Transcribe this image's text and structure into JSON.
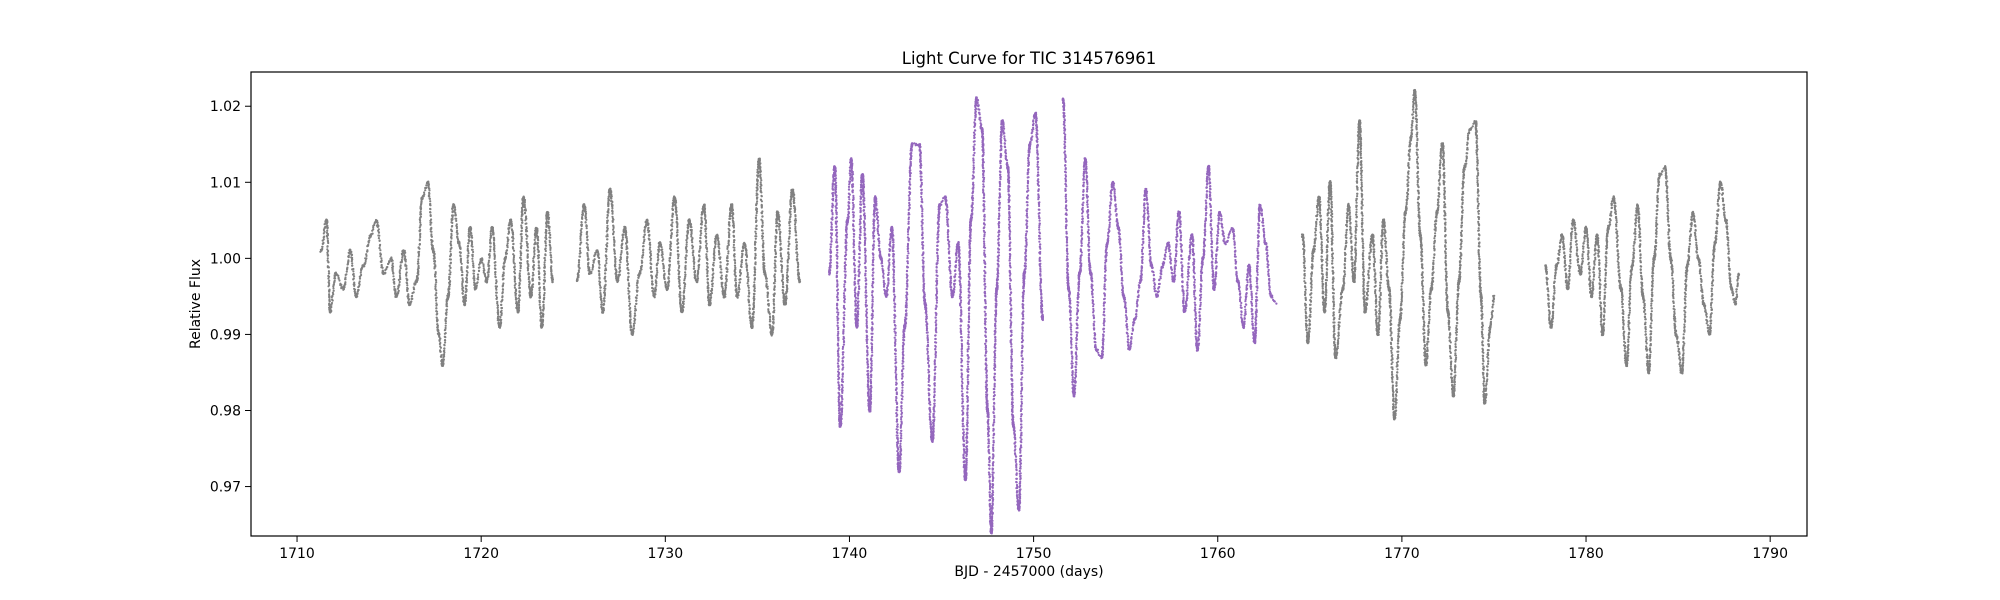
{
  "chart_data": {
    "type": "scatter",
    "title": "Light Curve for TIC 314576961",
    "xlabel": "BJD - 2457000 (days)",
    "ylabel": "Relative Flux",
    "xlim": [
      1707.5,
      1792
    ],
    "ylim": [
      0.9635,
      1.0245
    ],
    "xticks": [
      1710,
      1720,
      1730,
      1740,
      1750,
      1760,
      1770,
      1780,
      1790
    ],
    "yticks": [
      0.97,
      0.98,
      0.99,
      1.0,
      1.01,
      1.02
    ],
    "ytick_labels": [
      "0.97",
      "0.98",
      "0.99",
      "1.00",
      "1.01",
      "1.02"
    ],
    "grid": false,
    "legend": "none",
    "series": [
      {
        "color": "#808080",
        "segments": [
          {
            "x_start": 1711.3,
            "x_end": 1723.9,
            "points": [
              [
                1711.3,
                1.001
              ],
              [
                1711.6,
                1.005
              ],
              [
                1711.8,
                0.993
              ],
              [
                1712.1,
                0.998
              ],
              [
                1712.5,
                0.996
              ],
              [
                1712.9,
                1.001
              ],
              [
                1713.2,
                0.995
              ],
              [
                1713.6,
                0.999
              ],
              [
                1714.0,
                1.003
              ],
              [
                1714.3,
                1.005
              ],
              [
                1714.7,
                0.998
              ],
              [
                1715.1,
                1.0
              ],
              [
                1715.4,
                0.995
              ],
              [
                1715.8,
                1.001
              ],
              [
                1716.1,
                0.994
              ],
              [
                1716.5,
                0.997
              ],
              [
                1716.8,
                1.008
              ],
              [
                1717.1,
                1.01
              ],
              [
                1717.4,
                1.001
              ],
              [
                1717.7,
                0.99
              ],
              [
                1717.9,
                0.986
              ],
              [
                1718.2,
                0.995
              ],
              [
                1718.5,
                1.007
              ],
              [
                1718.8,
                1.002
              ],
              [
                1719.1,
                0.994
              ],
              [
                1719.4,
                1.004
              ],
              [
                1719.7,
                0.996
              ],
              [
                1720.0,
                1.0
              ],
              [
                1720.3,
                0.997
              ],
              [
                1720.6,
                1.004
              ],
              [
                1721.0,
                0.991
              ],
              [
                1721.3,
                1.0
              ],
              [
                1721.6,
                1.005
              ],
              [
                1722.0,
                0.993
              ],
              [
                1722.3,
                1.008
              ],
              [
                1722.7,
                0.995
              ],
              [
                1723.0,
                1.004
              ],
              [
                1723.3,
                0.991
              ],
              [
                1723.6,
                1.006
              ],
              [
                1723.9,
                0.997
              ]
            ]
          },
          {
            "x_start": 1725.2,
            "x_end": 1737.3,
            "points": [
              [
                1725.2,
                0.997
              ],
              [
                1725.6,
                1.007
              ],
              [
                1725.9,
                0.998
              ],
              [
                1726.3,
                1.001
              ],
              [
                1726.6,
                0.993
              ],
              [
                1727.0,
                1.009
              ],
              [
                1727.4,
                0.997
              ],
              [
                1727.8,
                1.004
              ],
              [
                1728.2,
                0.99
              ],
              [
                1728.6,
                0.998
              ],
              [
                1729.0,
                1.005
              ],
              [
                1729.4,
                0.995
              ],
              [
                1729.7,
                1.002
              ],
              [
                1730.1,
                0.996
              ],
              [
                1730.5,
                1.008
              ],
              [
                1730.9,
                0.993
              ],
              [
                1731.3,
                1.005
              ],
              [
                1731.7,
                0.997
              ],
              [
                1732.1,
                1.007
              ],
              [
                1732.4,
                0.994
              ],
              [
                1732.8,
                1.003
              ],
              [
                1733.2,
                0.995
              ],
              [
                1733.6,
                1.007
              ],
              [
                1733.9,
                0.995
              ],
              [
                1734.3,
                1.002
              ],
              [
                1734.7,
                0.991
              ],
              [
                1735.1,
                1.013
              ],
              [
                1735.4,
                0.998
              ],
              [
                1735.8,
                0.99
              ],
              [
                1736.1,
                1.006
              ],
              [
                1736.5,
                0.994
              ],
              [
                1736.9,
                1.009
              ],
              [
                1737.3,
                0.997
              ]
            ]
          },
          {
            "x_start": 1764.6,
            "x_end": 1775.0,
            "points": [
              [
                1764.6,
                1.003
              ],
              [
                1764.9,
                0.989
              ],
              [
                1765.2,
                1.001
              ],
              [
                1765.5,
                1.008
              ],
              [
                1765.8,
                0.993
              ],
              [
                1766.1,
                1.01
              ],
              [
                1766.4,
                0.987
              ],
              [
                1766.8,
                0.996
              ],
              [
                1767.1,
                1.007
              ],
              [
                1767.4,
                0.997
              ],
              [
                1767.7,
                1.018
              ],
              [
                1768.0,
                0.993
              ],
              [
                1768.4,
                1.003
              ],
              [
                1768.7,
                0.99
              ],
              [
                1769.0,
                1.005
              ],
              [
                1769.3,
                0.996
              ],
              [
                1769.6,
                0.979
              ],
              [
                1769.9,
                0.992
              ],
              [
                1770.2,
                1.006
              ],
              [
                1770.5,
                1.016
              ],
              [
                1770.7,
                1.022
              ],
              [
                1771.0,
                1.003
              ],
              [
                1771.3,
                0.986
              ],
              [
                1771.6,
                0.996
              ],
              [
                1771.9,
                1.006
              ],
              [
                1772.2,
                1.015
              ],
              [
                1772.5,
                0.993
              ],
              [
                1772.8,
                0.982
              ],
              [
                1773.1,
                0.997
              ],
              [
                1773.4,
                1.012
              ],
              [
                1773.7,
                1.017
              ],
              [
                1774.0,
                1.018
              ],
              [
                1774.3,
                0.995
              ],
              [
                1774.5,
                0.981
              ],
              [
                1774.8,
                0.991
              ],
              [
                1775.0,
                0.995
              ]
            ]
          },
          {
            "x_start": 1777.8,
            "x_end": 1788.3,
            "points": [
              [
                1777.8,
                0.999
              ],
              [
                1778.1,
                0.991
              ],
              [
                1778.4,
                0.999
              ],
              [
                1778.7,
                1.003
              ],
              [
                1779.0,
                0.996
              ],
              [
                1779.3,
                1.005
              ],
              [
                1779.7,
                0.998
              ],
              [
                1780.0,
                1.004
              ],
              [
                1780.3,
                0.995
              ],
              [
                1780.6,
                1.003
              ],
              [
                1780.9,
                0.99
              ],
              [
                1781.2,
                1.004
              ],
              [
                1781.5,
                1.008
              ],
              [
                1781.9,
                0.996
              ],
              [
                1782.2,
                0.986
              ],
              [
                1782.5,
                0.999
              ],
              [
                1782.8,
                1.007
              ],
              [
                1783.1,
                0.995
              ],
              [
                1783.4,
                0.985
              ],
              [
                1783.7,
                1.0
              ],
              [
                1784.0,
                1.011
              ],
              [
                1784.3,
                1.012
              ],
              [
                1784.6,
                1.0
              ],
              [
                1784.9,
                0.99
              ],
              [
                1785.2,
                0.985
              ],
              [
                1785.5,
                0.999
              ],
              [
                1785.8,
                1.006
              ],
              [
                1786.1,
                1.0
              ],
              [
                1786.4,
                0.994
              ],
              [
                1786.7,
                0.99
              ],
              [
                1787.0,
                1.002
              ],
              [
                1787.3,
                1.01
              ],
              [
                1787.6,
                1.005
              ],
              [
                1787.9,
                0.996
              ],
              [
                1788.1,
                0.994
              ],
              [
                1788.3,
                0.998
              ]
            ]
          }
        ]
      },
      {
        "color": "#9467bd",
        "segments": [
          {
            "x_start": 1738.9,
            "x_end": 1750.5,
            "points": [
              [
                1738.9,
                0.998
              ],
              [
                1739.2,
                1.012
              ],
              [
                1739.5,
                0.978
              ],
              [
                1739.9,
                1.005
              ],
              [
                1740.1,
                1.013
              ],
              [
                1740.4,
                0.991
              ],
              [
                1740.7,
                1.011
              ],
              [
                1741.1,
                0.98
              ],
              [
                1741.4,
                1.008
              ],
              [
                1741.7,
                1.0
              ],
              [
                1742.0,
                0.995
              ],
              [
                1742.3,
                1.004
              ],
              [
                1742.7,
                0.972
              ],
              [
                1743.0,
                0.991
              ],
              [
                1743.4,
                1.015
              ],
              [
                1743.8,
                1.015
              ],
              [
                1744.1,
                0.994
              ],
              [
                1744.5,
                0.976
              ],
              [
                1744.9,
                1.007
              ],
              [
                1745.2,
                1.008
              ],
              [
                1745.6,
                0.995
              ],
              [
                1745.9,
                1.002
              ],
              [
                1746.3,
                0.971
              ],
              [
                1746.6,
                1.005
              ],
              [
                1746.9,
                1.021
              ],
              [
                1747.2,
                1.017
              ],
              [
                1747.5,
                0.98
              ],
              [
                1747.7,
                0.964
              ],
              [
                1748.0,
                0.996
              ],
              [
                1748.3,
                1.018
              ],
              [
                1748.6,
                1.012
              ],
              [
                1748.9,
                0.978
              ],
              [
                1749.2,
                0.967
              ],
              [
                1749.5,
                0.998
              ],
              [
                1749.8,
                1.015
              ],
              [
                1750.1,
                1.019
              ],
              [
                1750.5,
                0.992
              ]
            ]
          },
          {
            "x_start": 1751.6,
            "x_end": 1763.2,
            "points": [
              [
                1751.6,
                1.021
              ],
              [
                1751.9,
                0.996
              ],
              [
                1752.2,
                0.982
              ],
              [
                1752.5,
                0.998
              ],
              [
                1752.8,
                1.013
              ],
              [
                1753.1,
                0.998
              ],
              [
                1753.4,
                0.988
              ],
              [
                1753.7,
                0.987
              ],
              [
                1754.0,
                1.002
              ],
              [
                1754.3,
                1.01
              ],
              [
                1754.6,
                1.004
              ],
              [
                1754.9,
                0.995
              ],
              [
                1755.2,
                0.988
              ],
              [
                1755.5,
                0.992
              ],
              [
                1755.8,
                0.997
              ],
              [
                1756.1,
                1.009
              ],
              [
                1756.4,
                0.999
              ],
              [
                1756.7,
                0.995
              ],
              [
                1757.0,
                0.999
              ],
              [
                1757.3,
                1.002
              ],
              [
                1757.6,
                0.997
              ],
              [
                1757.9,
                1.006
              ],
              [
                1758.2,
                0.993
              ],
              [
                1758.6,
                1.003
              ],
              [
                1758.9,
                0.988
              ],
              [
                1759.2,
                1.0
              ],
              [
                1759.5,
                1.012
              ],
              [
                1759.8,
                0.996
              ],
              [
                1760.1,
                1.006
              ],
              [
                1760.4,
                1.002
              ],
              [
                1760.8,
                1.004
              ],
              [
                1761.1,
                0.997
              ],
              [
                1761.4,
                0.991
              ],
              [
                1761.7,
                0.999
              ],
              [
                1762.0,
                0.989
              ],
              [
                1762.3,
                1.007
              ],
              [
                1762.6,
                1.002
              ],
              [
                1762.9,
                0.995
              ],
              [
                1763.2,
                0.994
              ]
            ]
          }
        ]
      }
    ]
  }
}
